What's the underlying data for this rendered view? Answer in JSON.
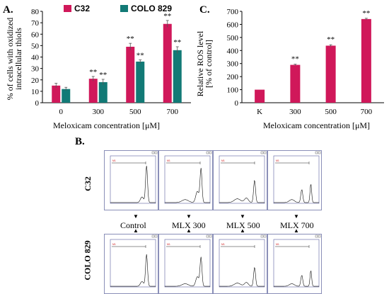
{
  "panelA": {
    "letter": "A.",
    "legend": [
      {
        "name": "C32",
        "color": "#d0185a"
      },
      {
        "name": "COLO 829",
        "color": "#127a76"
      }
    ],
    "ylabel_line1": "% of cells with oxidized",
    "ylabel_line2": "intracellular thiols",
    "xlabel": "Meloxicam concentration [μM]"
  },
  "panelC": {
    "letter": "C.",
    "ylabel_line1": "Relative ROS level",
    "ylabel_line2": "[% of control]",
    "xlabel": "Meloxicam concentration [μM]"
  },
  "panelB": {
    "letter": "B.",
    "rows": [
      "C32",
      "COLO 829"
    ],
    "conditions": [
      "Control",
      "MLX 300",
      "MLX 500",
      "MLX 700"
    ],
    "marker_label": "M1"
  },
  "chart_data": [
    {
      "type": "bar",
      "categories": [
        "0",
        "300",
        "500",
        "700"
      ],
      "series": [
        {
          "name": "C32",
          "values": [
            15,
            21,
            49,
            69
          ],
          "errors": [
            2,
            2,
            3,
            3
          ],
          "sig": [
            "",
            "**",
            "**",
            "**"
          ]
        },
        {
          "name": "COLO 829",
          "values": [
            12,
            18,
            36,
            46
          ],
          "errors": [
            1.5,
            2.5,
            1.5,
            3
          ],
          "sig": [
            "",
            "**",
            "**",
            "**"
          ]
        }
      ],
      "xlabel": "Meloxicam concentration [μM]",
      "ylabel": "% of cells with oxidized intracellular thiols",
      "ylim": [
        0,
        80
      ],
      "yticks": [
        0,
        10,
        20,
        30,
        40,
        50,
        60,
        70,
        80
      ],
      "colors": [
        "#d0185a",
        "#127a76"
      ]
    },
    {
      "type": "bar",
      "categories": [
        "K",
        "300",
        "500",
        "700"
      ],
      "values": [
        100,
        290,
        437,
        641
      ],
      "errors": [
        0,
        5,
        7,
        6
      ],
      "sig": [
        "",
        "**",
        "**",
        "**"
      ],
      "xlabel": "Meloxicam concentration [μM]",
      "ylabel": "Relative ROS level [% of control]",
      "ylim": [
        0,
        700
      ],
      "yticks": [
        0,
        100,
        200,
        300,
        400,
        500,
        600,
        700
      ],
      "color": "#d0185a"
    }
  ]
}
